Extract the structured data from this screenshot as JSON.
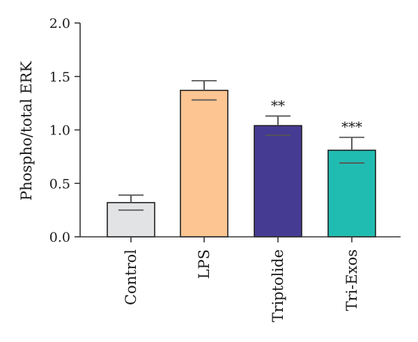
{
  "chart_data": {
    "type": "bar",
    "title": "",
    "xlabel": "",
    "ylabel": "Phospho/total ERK",
    "ylim": [
      0,
      2.0
    ],
    "yticks": [
      "0.0",
      "0.5",
      "1.0",
      "1.5",
      "2.0"
    ],
    "grid": false,
    "categories": [
      "Control",
      "LPS",
      "Triptolide",
      "Tri-Exos"
    ],
    "values": [
      0.32,
      1.37,
      1.04,
      0.81
    ],
    "errors": [
      0.07,
      0.09,
      0.09,
      0.12
    ],
    "annotations": [
      "",
      "",
      "**",
      "***"
    ],
    "colors": [
      "#e2e3e5",
      "#fcc592",
      "#463b93",
      "#21bcb1"
    ]
  }
}
